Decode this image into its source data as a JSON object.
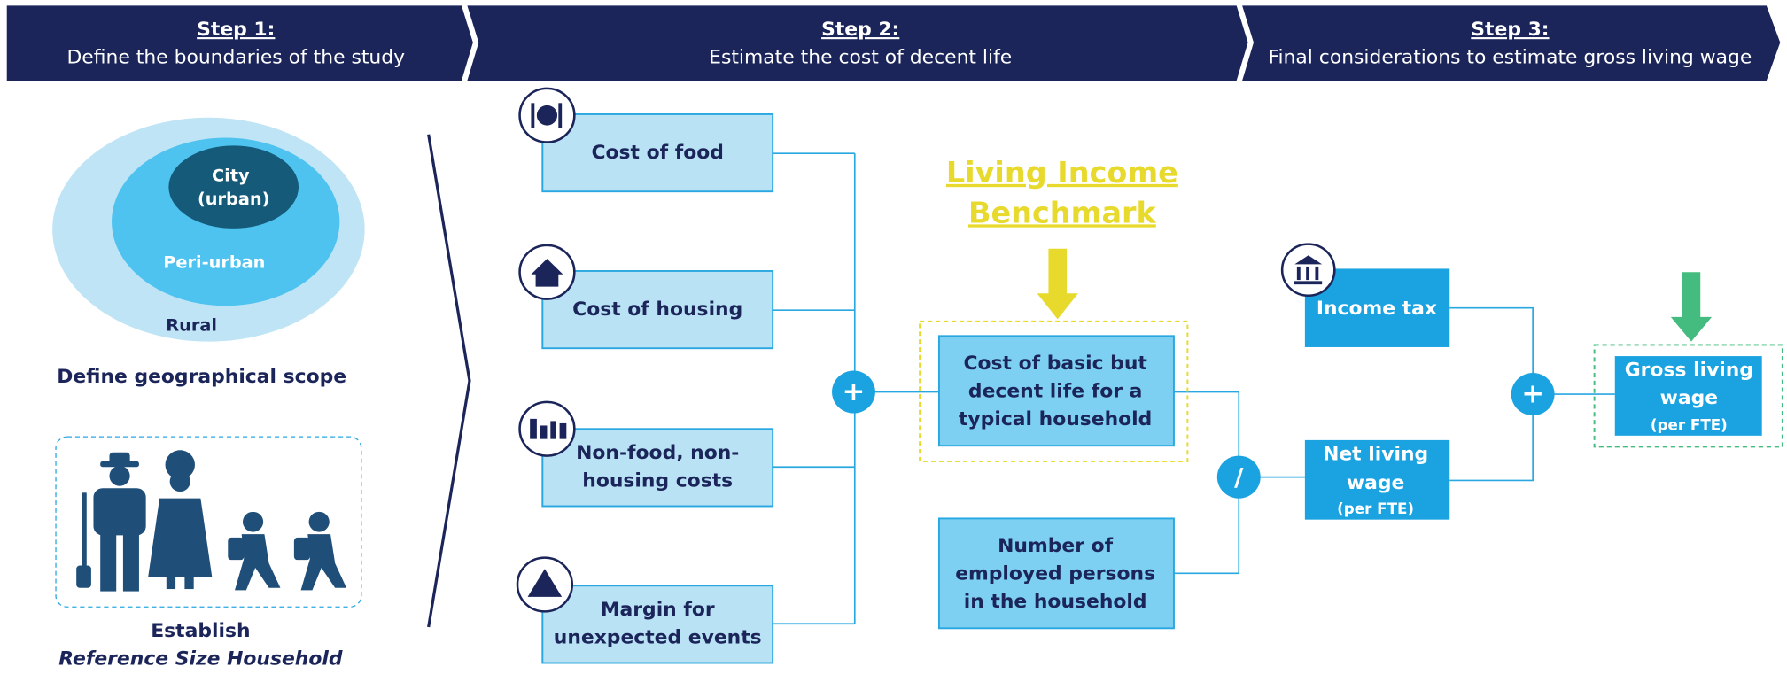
{
  "steps": [
    {
      "title": "Step 1:",
      "subtitle": "Define the boundaries of the study"
    },
    {
      "title": "Step 2:",
      "subtitle": "Estimate the cost of decent life"
    },
    {
      "title": "Step 3:",
      "subtitle": "Final considerations to estimate gross living wage"
    }
  ],
  "scope": {
    "city": [
      "City",
      "(urban)"
    ],
    "periurban": "Peri-urban",
    "rural": "Rural",
    "caption": "Define geographical scope"
  },
  "household": {
    "caption": [
      "Establish",
      "Reference Size Household"
    ]
  },
  "costs": [
    [
      "Cost of food"
    ],
    [
      "Cost of housing"
    ],
    [
      "Non-food, non-",
      "housing costs"
    ],
    [
      "Margin for",
      "unexpected events"
    ]
  ],
  "operators": [
    "+",
    "/",
    "+"
  ],
  "benchmark": [
    "Living Income",
    "Benchmark"
  ],
  "decent_life": [
    "Cost of basic but",
    "decent life for a",
    "typical household"
  ],
  "employed": [
    "Number of",
    "employed persons",
    "in the household"
  ],
  "income_tax": "Income tax",
  "net_wage": [
    "Net living",
    "wage",
    "(per FTE)"
  ],
  "gross_wage": [
    "Gross living",
    "wage",
    "(per FTE)"
  ]
}
